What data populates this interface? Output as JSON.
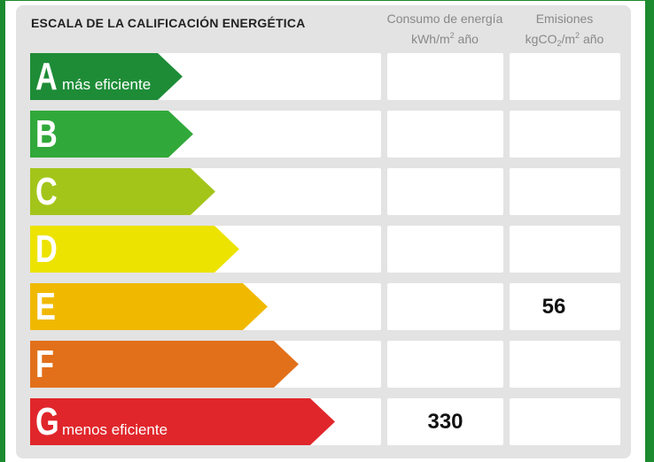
{
  "title": "ESCALA DE LA CALIFICACIÓN ENERGÉTICA",
  "columns": {
    "consumption": {
      "line1": "Consumo de energía",
      "unit_prefix": "kWh/m",
      "unit_sup": "2",
      "unit_suffix": " año"
    },
    "emissions": {
      "line1": "Emisiones",
      "unit_prefix": "kgCO",
      "unit_sub": "2",
      "unit_mid": "/m",
      "unit_sup": "2",
      "unit_suffix": " año"
    }
  },
  "ratings": [
    {
      "letter": "A",
      "label": "más eficiente",
      "color": "#1e8c37",
      "consumption": "",
      "emissions": ""
    },
    {
      "letter": "B",
      "label": "",
      "color": "#31a83a",
      "consumption": "",
      "emissions": ""
    },
    {
      "letter": "C",
      "label": "",
      "color": "#a3c51a",
      "consumption": "",
      "emissions": ""
    },
    {
      "letter": "D",
      "label": "",
      "color": "#ede300",
      "consumption": "",
      "emissions": ""
    },
    {
      "letter": "E",
      "label": "",
      "color": "#f0b900",
      "consumption": "",
      "emissions": "56"
    },
    {
      "letter": "F",
      "label": "",
      "color": "#e2701a",
      "consumption": "",
      "emissions": ""
    },
    {
      "letter": "G",
      "label": "menos eficiente",
      "color": "#e0262b",
      "consumption": "330",
      "emissions": ""
    }
  ]
}
